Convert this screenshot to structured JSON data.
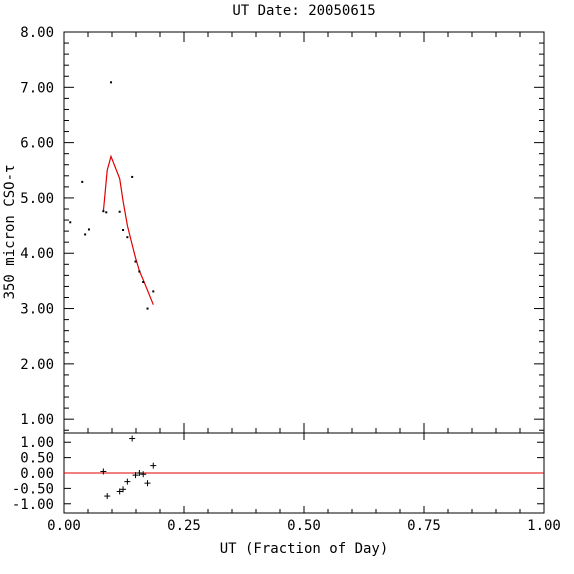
{
  "chart_data": {
    "type": "scatter",
    "title": "UT Date: 20050615",
    "xlabel": "UT (Fraction of Day)",
    "ylabel": "350 micron CSO-τ",
    "xlim": [
      0,
      1
    ],
    "ylim": [
      0.75,
      8.0
    ],
    "residual_ylim": [
      -1.3,
      1.3
    ],
    "x_ticks": [
      0.0,
      0.25,
      0.5,
      0.75,
      1.0
    ],
    "x_tick_labels": [
      "0.00",
      "0.25",
      "0.50",
      "0.75",
      "1.00"
    ],
    "y_ticks": [
      1,
      2,
      3,
      4,
      5,
      6,
      7,
      8
    ],
    "y_tick_labels": [
      "1.00",
      "2.00",
      "3.00",
      "4.00",
      "5.00",
      "6.00",
      "7.00",
      "8.00"
    ],
    "residual_ticks": [
      1,
      0.5,
      0,
      -0.5,
      -1
    ],
    "residual_tick_labels": [
      "1.00",
      "0.50",
      "0.00",
      "-0.50",
      "-1.00"
    ],
    "fit_color": "#e00000",
    "points": [
      {
        "x": 0.013,
        "y": 4.56
      },
      {
        "x": 0.038,
        "y": 5.29
      },
      {
        "x": 0.044,
        "y": 4.34
      },
      {
        "x": 0.052,
        "y": 4.43
      },
      {
        "x": 0.082,
        "y": 4.76
      },
      {
        "x": 0.088,
        "y": 4.74
      },
      {
        "x": 0.098,
        "y": 7.09
      },
      {
        "x": 0.116,
        "y": 4.75
      },
      {
        "x": 0.123,
        "y": 4.42
      },
      {
        "x": 0.132,
        "y": 4.29
      },
      {
        "x": 0.142,
        "y": 5.38
      },
      {
        "x": 0.149,
        "y": 3.85
      },
      {
        "x": 0.157,
        "y": 3.67
      },
      {
        "x": 0.165,
        "y": 3.48
      },
      {
        "x": 0.174,
        "y": 3.0
      },
      {
        "x": 0.186,
        "y": 3.31
      }
    ],
    "fit_line": [
      {
        "x": 0.082,
        "y": 4.76
      },
      {
        "x": 0.09,
        "y": 5.5
      },
      {
        "x": 0.098,
        "y": 5.75
      },
      {
        "x": 0.116,
        "y": 5.35
      },
      {
        "x": 0.123,
        "y": 4.95
      },
      {
        "x": 0.132,
        "y": 4.5
      },
      {
        "x": 0.142,
        "y": 4.15
      },
      {
        "x": 0.149,
        "y": 3.92
      },
      {
        "x": 0.157,
        "y": 3.68
      },
      {
        "x": 0.165,
        "y": 3.52
      },
      {
        "x": 0.174,
        "y": 3.33
      },
      {
        "x": 0.186,
        "y": 3.07
      }
    ],
    "residuals": [
      {
        "x": 0.082,
        "y": 0.05
      },
      {
        "x": 0.09,
        "y": -0.75
      },
      {
        "x": 0.116,
        "y": -0.6
      },
      {
        "x": 0.123,
        "y": -0.53
      },
      {
        "x": 0.132,
        "y": -0.28
      },
      {
        "x": 0.142,
        "y": 1.12
      },
      {
        "x": 0.149,
        "y": -0.07
      },
      {
        "x": 0.157,
        "y": 0.0
      },
      {
        "x": 0.165,
        "y": -0.04
      },
      {
        "x": 0.174,
        "y": -0.33
      },
      {
        "x": 0.186,
        "y": 0.24
      }
    ]
  }
}
